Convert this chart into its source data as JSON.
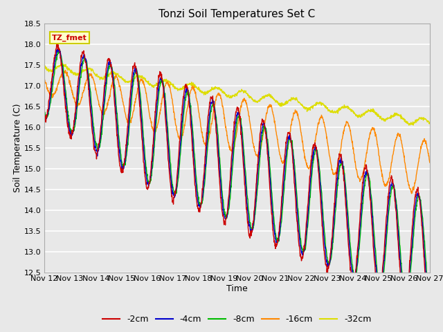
{
  "title": "Tonzi Soil Temperatures Set C",
  "xlabel": "Time",
  "ylabel": "Soil Temperature (C)",
  "ylim": [
    12.5,
    18.5
  ],
  "xlim": [
    0,
    360
  ],
  "annotation_text": "TZ_fmet",
  "annotation_color": "#cc0000",
  "annotation_bg": "#ffffcc",
  "annotation_border": "#cccc00",
  "bg_color": "#e8e8e8",
  "axes_bg": "#e8e8e8",
  "grid_color": "white",
  "series": {
    "-2cm": {
      "color": "#cc0000",
      "linewidth": 1.0
    },
    "-4cm": {
      "color": "#0000cc",
      "linewidth": 1.0
    },
    "-8cm": {
      "color": "#00bb00",
      "linewidth": 1.0
    },
    "-16cm": {
      "color": "#ff8800",
      "linewidth": 1.0
    },
    "-32cm": {
      "color": "#dddd00",
      "linewidth": 1.0
    }
  },
  "xticks": [
    0,
    24,
    48,
    72,
    96,
    120,
    144,
    168,
    192,
    216,
    240,
    264,
    288,
    312,
    336,
    360
  ],
  "xtick_labels": [
    "Nov 12",
    "Nov 13",
    "Nov 14",
    "Nov 15",
    "Nov 16",
    "Nov 17",
    "Nov 18",
    "Nov 19",
    "Nov 20",
    "Nov 21",
    "Nov 22",
    "Nov 23",
    "Nov 24",
    "Nov 25",
    "Nov 26",
    "Nov 27"
  ],
  "yticks": [
    12.5,
    13.0,
    13.5,
    14.0,
    14.5,
    15.0,
    15.5,
    16.0,
    16.5,
    17.0,
    17.5,
    18.0,
    18.5
  ]
}
